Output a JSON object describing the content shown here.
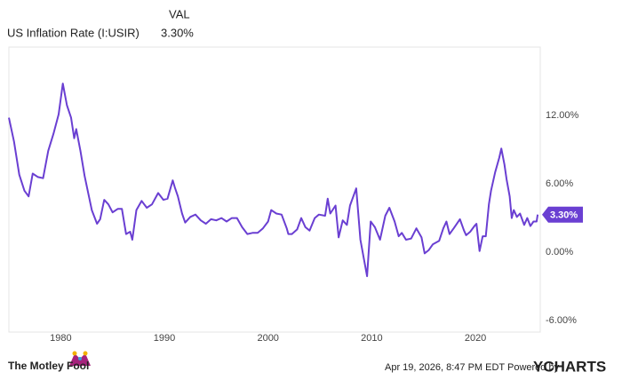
{
  "chart_data": {
    "type": "line",
    "value_header": "VAL",
    "latest_label": "3.30%",
    "date_stamp": "Apr 19, 2026, 8:47 PM EDT Powered by",
    "provider": "YCHARTS",
    "publisher": "The Motley Fool",
    "xlim": [
      1975,
      2026.25
    ],
    "xticks": [
      1980,
      1990,
      2000,
      2010,
      2020
    ],
    "ylim": [
      -7,
      18
    ],
    "yticks": [
      {
        "value": -6,
        "label": "-6.00%"
      },
      {
        "value": 0,
        "label": "0.00%"
      },
      {
        "value": 6,
        "label": "6.00%"
      },
      {
        "value": 12,
        "label": "12.00%"
      }
    ],
    "grid": false,
    "x": [
      1975.0,
      1975.5,
      1976.0,
      1976.5,
      1976.9,
      1977.3,
      1977.8,
      1978.3,
      1978.8,
      1979.3,
      1979.8,
      1980.2,
      1980.6,
      1981.0,
      1981.3,
      1981.5,
      1981.9,
      1982.3,
      1982.7,
      1983.0,
      1983.5,
      1983.8,
      1984.2,
      1984.6,
      1985.0,
      1985.5,
      1985.9,
      1986.3,
      1986.7,
      1986.9,
      1987.3,
      1987.8,
      1988.3,
      1988.8,
      1989.4,
      1989.9,
      1990.3,
      1990.8,
      1991.0,
      1991.3,
      1991.7,
      1992.0,
      1992.5,
      1993.0,
      1993.5,
      1994.0,
      1994.5,
      1995.0,
      1995.5,
      1996.0,
      1996.5,
      1997.0,
      1997.5,
      1998.0,
      1998.5,
      1999.0,
      1999.5,
      2000.0,
      2000.3,
      2000.8,
      2001.3,
      2001.8,
      2001.95,
      2002.3,
      2002.8,
      2003.2,
      2003.6,
      2004.0,
      2004.5,
      2004.9,
      2005.5,
      2005.75,
      2006.0,
      2006.5,
      2006.8,
      2007.2,
      2007.6,
      2007.9,
      2008.5,
      2008.9,
      2009.2,
      2009.55,
      2009.9,
      2010.3,
      2010.8,
      2011.3,
      2011.7,
      2012.2,
      2012.6,
      2012.9,
      2013.3,
      2013.8,
      2014.3,
      2014.8,
      2015.1,
      2015.5,
      2015.9,
      2016.5,
      2016.9,
      2017.2,
      2017.5,
      2017.9,
      2018.5,
      2018.9,
      2019.1,
      2019.5,
      2019.9,
      2020.1,
      2020.4,
      2020.7,
      2021.0,
      2021.3,
      2021.5,
      2021.9,
      2022.3,
      2022.5,
      2022.8,
      2023.0,
      2023.3,
      2023.5,
      2023.7,
      2024.0,
      2024.3,
      2024.7,
      2025.0,
      2025.3,
      2025.6,
      2025.9,
      2026.0
    ],
    "series": [
      {
        "name": "US Inflation Rate (I:USIR)",
        "color": "#6a3fd2",
        "values": [
          11.8,
          9.7,
          6.8,
          5.4,
          4.9,
          6.9,
          6.6,
          6.5,
          8.9,
          10.4,
          12.1,
          14.8,
          12.9,
          11.8,
          10.0,
          10.8,
          8.9,
          6.7,
          5.0,
          3.7,
          2.5,
          2.9,
          4.6,
          4.2,
          3.5,
          3.8,
          3.8,
          1.6,
          1.8,
          1.1,
          3.7,
          4.5,
          3.9,
          4.2,
          5.2,
          4.6,
          4.7,
          6.3,
          5.7,
          4.9,
          3.4,
          2.6,
          3.1,
          3.3,
          2.8,
          2.5,
          2.9,
          2.8,
          3.0,
          2.7,
          3.0,
          3.0,
          2.2,
          1.6,
          1.7,
          1.7,
          2.1,
          2.7,
          3.7,
          3.4,
          3.3,
          2.1,
          1.6,
          1.6,
          2.0,
          3.0,
          2.2,
          1.9,
          3.0,
          3.3,
          3.2,
          4.7,
          3.4,
          4.1,
          1.3,
          2.8,
          2.4,
          4.1,
          5.6,
          1.1,
          -0.4,
          -2.1,
          2.7,
          2.2,
          1.1,
          3.2,
          3.9,
          2.7,
          1.4,
          1.7,
          1.1,
          1.2,
          2.1,
          1.3,
          -0.1,
          0.2,
          0.7,
          1.0,
          2.1,
          2.7,
          1.6,
          2.1,
          2.9,
          1.9,
          1.5,
          1.8,
          2.3,
          2.5,
          0.1,
          1.4,
          1.4,
          4.2,
          5.4,
          7.0,
          8.3,
          9.1,
          7.7,
          6.4,
          4.9,
          3.0,
          3.7,
          3.1,
          3.4,
          2.4,
          3.0,
          2.3,
          2.7,
          2.7,
          3.3
        ]
      }
    ]
  }
}
